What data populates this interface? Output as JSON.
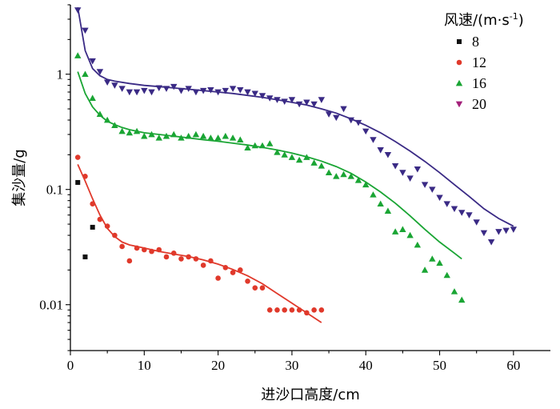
{
  "chart_data": {
    "type": "scatter",
    "xlabel": "进沙口高度/cm",
    "ylabel": "集沙量/g",
    "xlim": [
      0,
      65
    ],
    "ylim": [
      0.004,
      4
    ],
    "yscale": "log",
    "x_ticks": [
      "0",
      "10",
      "20",
      "30",
      "40",
      "50",
      "60"
    ],
    "y_ticks": [
      "0.01",
      "0.1",
      "1"
    ],
    "legend": {
      "title_main": "风速/(m·s",
      "title_sup": "-1",
      "title_end": ")",
      "placement": "top-right"
    },
    "series": [
      {
        "name": "8",
        "marker": "square",
        "color": "#111111",
        "x": [
          1,
          2,
          3
        ],
        "y": [
          0.115,
          0.026,
          0.047
        ],
        "fit": null
      },
      {
        "name": "12",
        "marker": "circle",
        "color": "#e0392b",
        "x": [
          1,
          2,
          3,
          4,
          5,
          6,
          7,
          8,
          9,
          10,
          11,
          12,
          13,
          14,
          15,
          16,
          17,
          18,
          19,
          20,
          21,
          22,
          23,
          24,
          25,
          26,
          27,
          28,
          29,
          30,
          31,
          32,
          33,
          34
        ],
        "y": [
          0.19,
          0.13,
          0.075,
          0.055,
          0.048,
          0.04,
          0.032,
          0.024,
          0.031,
          0.03,
          0.029,
          0.03,
          0.026,
          0.028,
          0.025,
          0.026,
          0.025,
          0.022,
          0.024,
          0.017,
          0.021,
          0.019,
          0.02,
          0.016,
          0.014,
          0.014,
          0.009,
          0.009,
          0.009,
          0.009,
          0.009,
          0.0085,
          0.009,
          0.009
        ],
        "fit": {
          "x": [
            1,
            2,
            3,
            4,
            5,
            6,
            7,
            8,
            10,
            12,
            14,
            16,
            18,
            20,
            22,
            24,
            26,
            28,
            30,
            32,
            34
          ],
          "y": [
            0.165,
            0.118,
            0.083,
            0.06,
            0.046,
            0.039,
            0.035,
            0.033,
            0.031,
            0.029,
            0.0275,
            0.0262,
            0.0245,
            0.0225,
            0.0202,
            0.0178,
            0.0152,
            0.0125,
            0.0103,
            0.0085,
            0.007
          ]
        }
      },
      {
        "name": "16",
        "marker": "triangle-up",
        "color": "#1aa534",
        "x": [
          1,
          2,
          3,
          4,
          5,
          6,
          7,
          8,
          9,
          10,
          11,
          12,
          13,
          14,
          15,
          16,
          17,
          18,
          19,
          20,
          21,
          22,
          23,
          24,
          25,
          26,
          27,
          28,
          29,
          30,
          31,
          32,
          33,
          34,
          35,
          36,
          37,
          38,
          39,
          40,
          41,
          42,
          43,
          44,
          45,
          46,
          47,
          48,
          49,
          50,
          51,
          52,
          53
        ],
        "y": [
          1.45,
          1.0,
          0.62,
          0.45,
          0.4,
          0.36,
          0.32,
          0.31,
          0.32,
          0.29,
          0.3,
          0.28,
          0.29,
          0.3,
          0.28,
          0.29,
          0.3,
          0.29,
          0.28,
          0.28,
          0.29,
          0.28,
          0.27,
          0.23,
          0.24,
          0.24,
          0.25,
          0.21,
          0.2,
          0.19,
          0.18,
          0.19,
          0.17,
          0.16,
          0.14,
          0.13,
          0.135,
          0.13,
          0.12,
          0.11,
          0.09,
          0.075,
          0.065,
          0.043,
          0.045,
          0.04,
          0.033,
          0.02,
          0.025,
          0.023,
          0.018,
          0.013,
          0.011
        ],
        "fit": {
          "x": [
            1,
            2,
            3,
            4,
            5,
            6,
            7,
            8,
            10,
            12,
            14,
            16,
            18,
            20,
            22,
            24,
            26,
            28,
            30,
            32,
            34,
            36,
            38,
            40,
            42,
            44,
            46,
            48,
            50,
            52,
            53
          ],
          "y": [
            1.05,
            0.68,
            0.52,
            0.44,
            0.39,
            0.365,
            0.345,
            0.33,
            0.31,
            0.3,
            0.29,
            0.28,
            0.27,
            0.262,
            0.252,
            0.243,
            0.232,
            0.22,
            0.207,
            0.192,
            0.176,
            0.158,
            0.138,
            0.116,
            0.095,
            0.076,
            0.059,
            0.045,
            0.035,
            0.028,
            0.025
          ]
        }
      },
      {
        "name": "20",
        "marker": "triangle-down",
        "color": "#3a2a85",
        "legend_color": "#a3207a",
        "x": [
          1,
          2,
          3,
          4,
          5,
          6,
          7,
          8,
          9,
          10,
          11,
          12,
          13,
          14,
          15,
          16,
          17,
          18,
          19,
          20,
          21,
          22,
          23,
          24,
          25,
          26,
          27,
          28,
          29,
          30,
          31,
          32,
          33,
          34,
          35,
          36,
          37,
          38,
          39,
          40,
          41,
          42,
          43,
          44,
          45,
          46,
          47,
          48,
          49,
          50,
          51,
          52,
          53,
          54,
          55,
          56,
          57,
          58,
          59,
          60
        ],
        "y": [
          3.6,
          2.4,
          1.3,
          1.05,
          0.85,
          0.8,
          0.75,
          0.7,
          0.7,
          0.72,
          0.7,
          0.76,
          0.75,
          0.78,
          0.72,
          0.75,
          0.7,
          0.72,
          0.73,
          0.7,
          0.72,
          0.75,
          0.73,
          0.7,
          0.68,
          0.65,
          0.62,
          0.6,
          0.58,
          0.6,
          0.55,
          0.57,
          0.55,
          0.6,
          0.45,
          0.42,
          0.5,
          0.4,
          0.38,
          0.32,
          0.27,
          0.22,
          0.2,
          0.16,
          0.14,
          0.125,
          0.15,
          0.11,
          0.1,
          0.085,
          0.075,
          0.068,
          0.063,
          0.06,
          0.052,
          0.042,
          0.035,
          0.043,
          0.044,
          0.045
        ],
        "fit": {
          "x": [
            1,
            2,
            3,
            4,
            5,
            6,
            8,
            10,
            12,
            14,
            16,
            18,
            20,
            22,
            24,
            26,
            28,
            30,
            32,
            34,
            36,
            38,
            40,
            42,
            44,
            46,
            48,
            50,
            52,
            54,
            56,
            58,
            60
          ],
          "y": [
            3.8,
            1.6,
            1.12,
            0.97,
            0.9,
            0.87,
            0.83,
            0.8,
            0.78,
            0.76,
            0.74,
            0.72,
            0.7,
            0.68,
            0.655,
            0.63,
            0.6,
            0.57,
            0.54,
            0.5,
            0.46,
            0.41,
            0.36,
            0.31,
            0.26,
            0.215,
            0.175,
            0.14,
            0.11,
            0.087,
            0.068,
            0.056,
            0.048
          ]
        }
      }
    ]
  }
}
